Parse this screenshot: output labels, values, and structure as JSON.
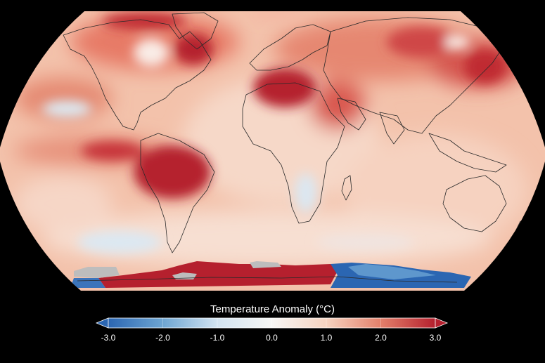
{
  "map": {
    "projection": "robinson",
    "background": "#000000",
    "description_colors": {
      "warm_strong": "#b5202e",
      "warm_mid": "#e3806b",
      "warm_light": "#f6d3c0",
      "neutral": "#f7f7f5",
      "cool_light": "#d3e4f1",
      "cool_mid": "#6ea6d3",
      "cool_strong": "#2b66b2",
      "no_data": "#bdbdbd",
      "coastline": "#2a2a2a"
    }
  },
  "legend": {
    "title": "Temperature Anomaly (°C)",
    "unit": "°C",
    "min": -3.0,
    "max": 3.0,
    "ticks": [
      {
        "value": -3.0,
        "label": "-3.0"
      },
      {
        "value": -2.0,
        "label": "-2.0"
      },
      {
        "value": -1.0,
        "label": "-1.0"
      },
      {
        "value": 0.0,
        "label": "0.0"
      },
      {
        "value": 1.0,
        "label": "1.0"
      },
      {
        "value": 2.0,
        "label": "2.0"
      },
      {
        "value": 3.0,
        "label": "3.0"
      }
    ],
    "extend_low_color": "#2b66b2",
    "extend_high_color": "#b5202e",
    "stops": [
      "#2b66b2",
      "#6ea6d3",
      "#d3e4f1",
      "#f7f7f5",
      "#f6d3c0",
      "#e3806b",
      "#b5202e"
    ]
  }
}
